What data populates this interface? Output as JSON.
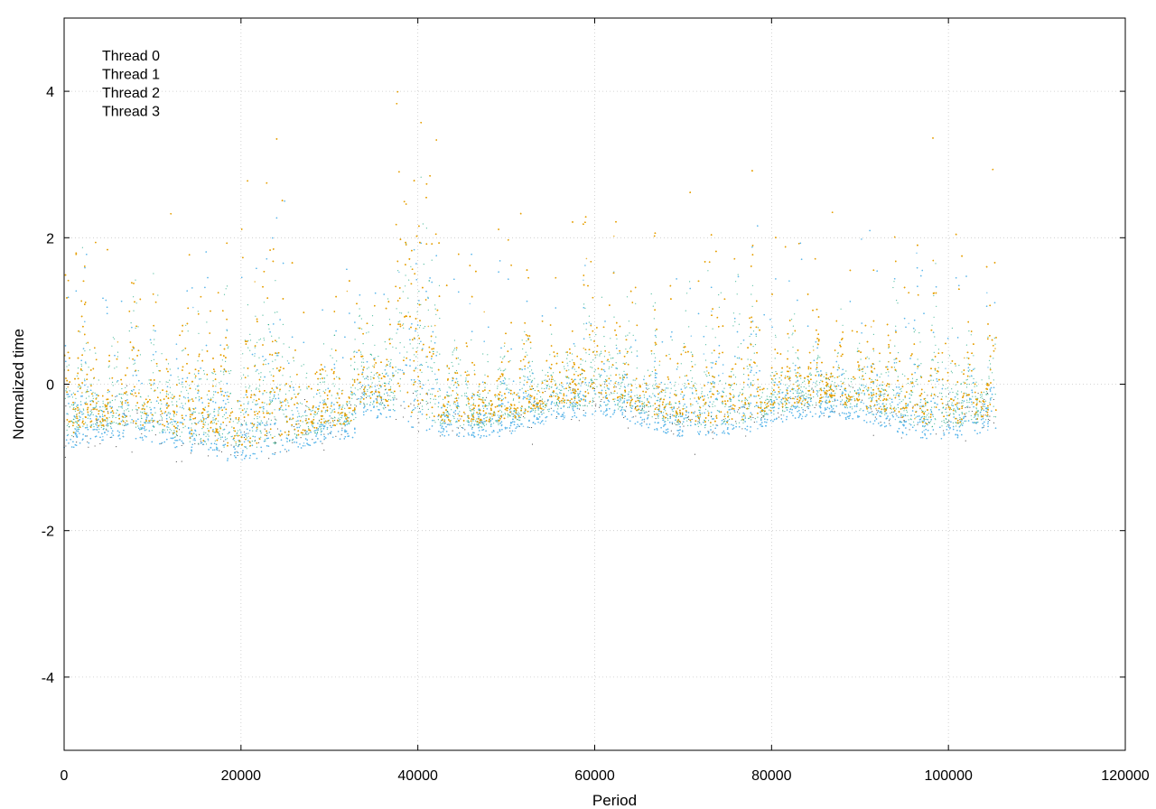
{
  "chart_data": {
    "type": "scatter",
    "title": "",
    "xlabel": "Period",
    "ylabel": "Normalized time",
    "xlim": [
      0,
      120000
    ],
    "ylim": [
      -5,
      5
    ],
    "xticks": [
      0,
      20000,
      40000,
      60000,
      80000,
      100000,
      120000
    ],
    "yticks": [
      -4,
      -2,
      0,
      2,
      4
    ],
    "xtick_labels": [
      "0",
      "20000",
      "40000",
      "60000",
      "80000",
      "100000",
      "120000"
    ],
    "ytick_labels": [
      "-4",
      "-2",
      "0",
      "2",
      "4"
    ],
    "grid": true,
    "legend_position": "top-left",
    "x_range_of_data": [
      0,
      105500
    ],
    "series": [
      {
        "name": "Thread 0",
        "color": "#009e73",
        "sampled_points": [
          [
            500,
            -0.9
          ],
          [
            3000,
            -0.6
          ],
          [
            8000,
            -0.3
          ],
          [
            15000,
            -0.5
          ],
          [
            23000,
            0.2
          ],
          [
            30000,
            -0.2
          ],
          [
            40000,
            0.4
          ],
          [
            47000,
            -0.3
          ],
          [
            55000,
            -0.2
          ],
          [
            62000,
            -0.5
          ],
          [
            70000,
            -0.3
          ],
          [
            78000,
            -0.4
          ],
          [
            86000,
            -0.2
          ],
          [
            95000,
            -0.3
          ],
          [
            104000,
            -0.4
          ]
        ]
      },
      {
        "name": "Thread 1",
        "color": "#56b4e9",
        "sampled_points": [
          [
            500,
            -1.0
          ],
          [
            5000,
            -0.9
          ],
          [
            12000,
            -0.8
          ],
          [
            20000,
            -0.9
          ],
          [
            32000,
            -0.8
          ],
          [
            40000,
            -0.5
          ],
          [
            48000,
            -0.7
          ],
          [
            56000,
            -0.6
          ],
          [
            63000,
            -0.9
          ],
          [
            69000,
            -0.8
          ],
          [
            76000,
            -0.9
          ],
          [
            84000,
            -0.8
          ],
          [
            92000,
            -0.7
          ],
          [
            100000,
            -0.8
          ],
          [
            105000,
            -0.7
          ]
        ]
      },
      {
        "name": "Thread 2",
        "color": "#e69f00",
        "sampled_points": [
          [
            500,
            -0.6
          ],
          [
            6000,
            -0.4
          ],
          [
            10000,
            0.0
          ],
          [
            18000,
            -0.3
          ],
          [
            24000,
            0.6
          ],
          [
            28000,
            0.3
          ],
          [
            40000,
            1.4
          ],
          [
            44000,
            0.2
          ],
          [
            52000,
            0.3
          ],
          [
            59000,
            0.6
          ],
          [
            66000,
            0.5
          ],
          [
            74000,
            0.2
          ],
          [
            82000,
            0.4
          ],
          [
            88000,
            0.6
          ],
          [
            96000,
            0.5
          ],
          [
            104000,
            0.4
          ]
        ]
      },
      {
        "name": "Thread 3",
        "color": "#000000",
        "sampled_points": [
          [
            2000,
            -0.7
          ],
          [
            14000,
            -0.6
          ],
          [
            26000,
            -0.4
          ],
          [
            38000,
            -0.3
          ],
          [
            50000,
            -0.4
          ],
          [
            64000,
            -0.5
          ],
          [
            76000,
            -0.4
          ],
          [
            90000,
            -0.5
          ],
          [
            102000,
            -0.6
          ]
        ]
      }
    ]
  }
}
